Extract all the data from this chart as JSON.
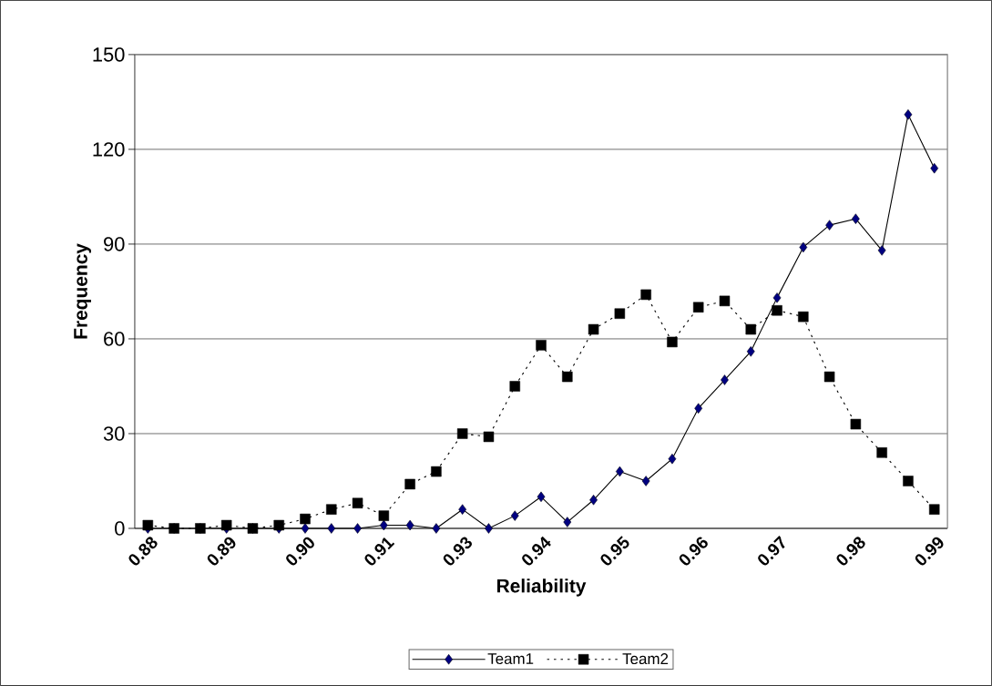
{
  "chart_data": {
    "type": "line",
    "xlabel": "Reliability",
    "ylabel": "Frequency",
    "categories": [
      "0.88",
      null,
      null,
      "0.89",
      null,
      null,
      "0.90",
      null,
      null,
      "0.91",
      null,
      null,
      "0.93",
      null,
      null,
      "0.94",
      null,
      null,
      "0.95",
      null,
      null,
      "0.96",
      null,
      null,
      "0.97",
      null,
      null,
      "0.98",
      null,
      null,
      "0.99"
    ],
    "series": [
      {
        "name": "Team1",
        "color": "#000080",
        "marker": "diamond",
        "line_style": "solid",
        "values": [
          0,
          0,
          0,
          0,
          0,
          0,
          0,
          0,
          0,
          1,
          1,
          0,
          6,
          0,
          4,
          10,
          2,
          9,
          18,
          15,
          22,
          38,
          47,
          56,
          73,
          89,
          96,
          98,
          88,
          131,
          114
        ]
      },
      {
        "name": "Team2",
        "color": "#000000",
        "marker": "square",
        "line_style": "dotted",
        "values": [
          1,
          0,
          0,
          1,
          0,
          1,
          3,
          6,
          8,
          4,
          14,
          18,
          30,
          29,
          45,
          58,
          48,
          63,
          68,
          74,
          59,
          70,
          72,
          63,
          69,
          67,
          48,
          33,
          24,
          15,
          6
        ]
      }
    ],
    "ylim": [
      0,
      150
    ],
    "yticks": [
      0,
      30,
      60,
      90,
      120,
      150
    ],
    "grid": "y",
    "legend": "bottom"
  }
}
